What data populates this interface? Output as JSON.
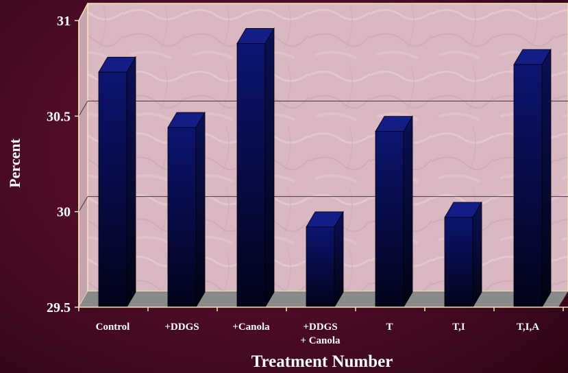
{
  "chart_data": {
    "type": "bar",
    "title": "",
    "xlabel": "Treatment Number",
    "ylabel": "Percent",
    "categories": [
      [
        "Control"
      ],
      [
        "+DDGS"
      ],
      [
        "+Canola"
      ],
      [
        "+DDGS",
        "+ Canola"
      ],
      [
        "T"
      ],
      [
        "T,I"
      ],
      [
        "T,I,A"
      ]
    ],
    "values": [
      30.73,
      30.44,
      30.88,
      29.92,
      30.42,
      29.97,
      30.77
    ],
    "ylim": [
      29.5,
      31
    ],
    "yticks": [
      "29.5",
      "30",
      "30.5",
      "31"
    ],
    "grid": true,
    "three_d": true,
    "colors": {
      "bar_front_top": "#0c1470",
      "bar_front_bottom": "#02031a",
      "bar_top": "#141c85",
      "bar_side": "#050a3a",
      "wall": "#d8b4bf",
      "floor": "#8a8a8a",
      "axis": "#f3e7b0"
    }
  }
}
